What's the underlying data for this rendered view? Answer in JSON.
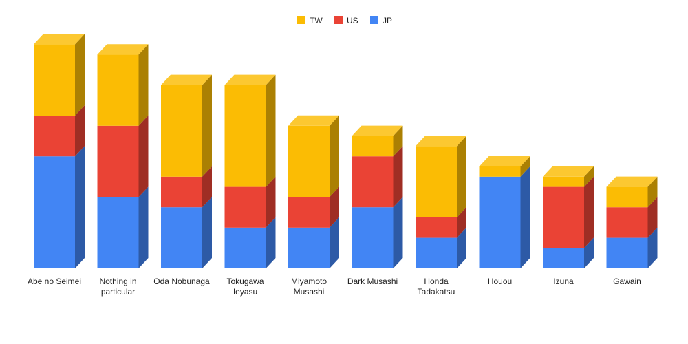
{
  "chart_data": {
    "type": "bar",
    "stacked": true,
    "three_d": true,
    "title": "",
    "xlabel": "",
    "ylabel": "",
    "legend_position": "top",
    "categories": [
      [
        "Abe no Seimei"
      ],
      [
        "Nothing in",
        "particular"
      ],
      [
        "Oda Nobunaga"
      ],
      [
        "Tokugawa",
        "Ieyasu"
      ],
      [
        "Miyamoto",
        "Musashi"
      ],
      [
        "Dark Musashi"
      ],
      [
        "Honda",
        "Tadakatsu"
      ],
      [
        "Houou"
      ],
      [
        "Izuna"
      ],
      [
        "Gawain"
      ]
    ],
    "series": [
      {
        "name": "JP",
        "color": "#4285F4",
        "values": [
          11,
          7,
          6,
          4,
          4,
          6,
          3,
          9,
          2,
          3
        ]
      },
      {
        "name": "US",
        "color": "#EA4335",
        "values": [
          4,
          7,
          3,
          4,
          3,
          5,
          2,
          0,
          6,
          3
        ]
      },
      {
        "name": "TW",
        "color": "#FBBC04",
        "values": [
          7,
          7,
          9,
          10,
          7,
          2,
          7,
          1,
          1,
          2
        ]
      }
    ],
    "legend_order": [
      "TW",
      "US",
      "JP"
    ],
    "ylim": [
      0,
      22
    ]
  }
}
